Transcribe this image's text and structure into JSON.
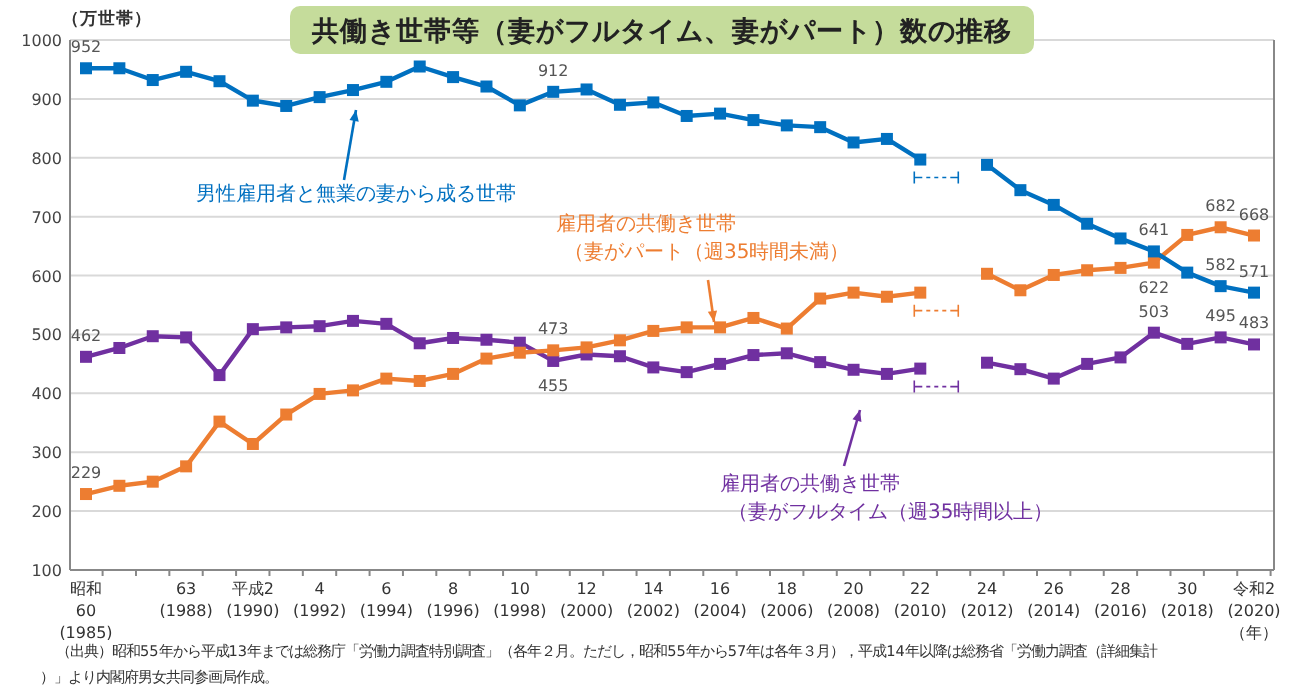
{
  "chart_data": {
    "type": "line",
    "title": "共働き世帯等（妻がフルタイム、妻がパート）数の推移",
    "ylabel": "（万世帯）",
    "xlabel": "（年）",
    "categories": [
      "昭和\n60\n(1985)",
      null,
      null,
      "63\n(1988)",
      null,
      "平成2\n(1990)",
      null,
      "4\n(1992)",
      null,
      "6\n(1994)",
      null,
      "8\n(1996)",
      null,
      "10\n(1998)",
      null,
      "12\n(2000)",
      null,
      "14\n(2002)",
      null,
      "16\n(2004)",
      null,
      "18\n(2006)",
      null,
      "20\n(2008)",
      null,
      "22\n(2010)",
      null,
      "24\n(2012)",
      null,
      "26\n(2014)",
      null,
      "28\n(2016)",
      null,
      "30\n(2018)",
      null,
      "令和2\n(2020)"
    ],
    "series": [
      {
        "name": "男性雇用者と無業の妻から成る世帯",
        "color": "#0070c0",
        "values": [
          952,
          952,
          932,
          946,
          930,
          897,
          888,
          903,
          915,
          929,
          955,
          937,
          921,
          889,
          912,
          916,
          890,
          894,
          871,
          875,
          864,
          855,
          852,
          826,
          832,
          797,
          null,
          788,
          745,
          720,
          688,
          663,
          641,
          605,
          582,
          571
        ],
        "value_labels": [
          "952",
          null,
          null,
          null,
          null,
          null,
          null,
          null,
          null,
          null,
          null,
          null,
          null,
          null,
          "912",
          null,
          null,
          null,
          null,
          null,
          null,
          null,
          null,
          null,
          null,
          null,
          null,
          null,
          null,
          null,
          null,
          null,
          "641",
          null,
          "582",
          "571"
        ]
      },
      {
        "name": "雇用者の共働き世帯（妻がパート（週35時間未満）",
        "color": "#ed7d31",
        "values": [
          229,
          243,
          250,
          276,
          352,
          314,
          364,
          399,
          405,
          425,
          421,
          433,
          459,
          469,
          473,
          478,
          490,
          506,
          512,
          512,
          528,
          510,
          561,
          571,
          564,
          571,
          null,
          603,
          575,
          601,
          609,
          613,
          622,
          669,
          682,
          668
        ],
        "value_labels": [
          "229",
          null,
          null,
          null,
          null,
          null,
          null,
          null,
          null,
          null,
          null,
          null,
          null,
          null,
          "473",
          null,
          null,
          null,
          null,
          null,
          null,
          null,
          null,
          null,
          null,
          null,
          null,
          null,
          null,
          null,
          null,
          null,
          "622",
          null,
          "682",
          "668"
        ]
      },
      {
        "name": "雇用者の共働き世帯（妻がフルタイム（週35時間以上）",
        "color": "#7030a0",
        "values": [
          462,
          477,
          497,
          495,
          431,
          509,
          512,
          514,
          523,
          518,
          485,
          494,
          491,
          486,
          455,
          466,
          463,
          444,
          436,
          450,
          465,
          468,
          453,
          440,
          433,
          442,
          null,
          452,
          441,
          425,
          450,
          461,
          503,
          484,
          495,
          483
        ],
        "value_labels": [
          "462",
          null,
          null,
          null,
          null,
          null,
          null,
          null,
          null,
          null,
          null,
          null,
          null,
          null,
          "455",
          null,
          null,
          null,
          null,
          null,
          null,
          null,
          null,
          null,
          null,
          null,
          null,
          null,
          null,
          null,
          null,
          null,
          "503",
          null,
          "495",
          "483"
        ]
      }
    ],
    "ylim": [
      100,
      1000
    ],
    "yticks": [
      100,
      200,
      300,
      400,
      500,
      600,
      700,
      800,
      900,
      1000
    ],
    "grid": "y",
    "marker": "square",
    "line_style": "solid",
    "legend": false,
    "annotations": [
      "（出典）昭和55年から平成13年までは総務庁「労働力調査特別調査」（各年２月。ただし，昭和55年から57年は各年３月），平成14年以降は総務省「労働力調査（詳細集計）」より内閣府男女共同参画局作成。"
    ]
  }
}
